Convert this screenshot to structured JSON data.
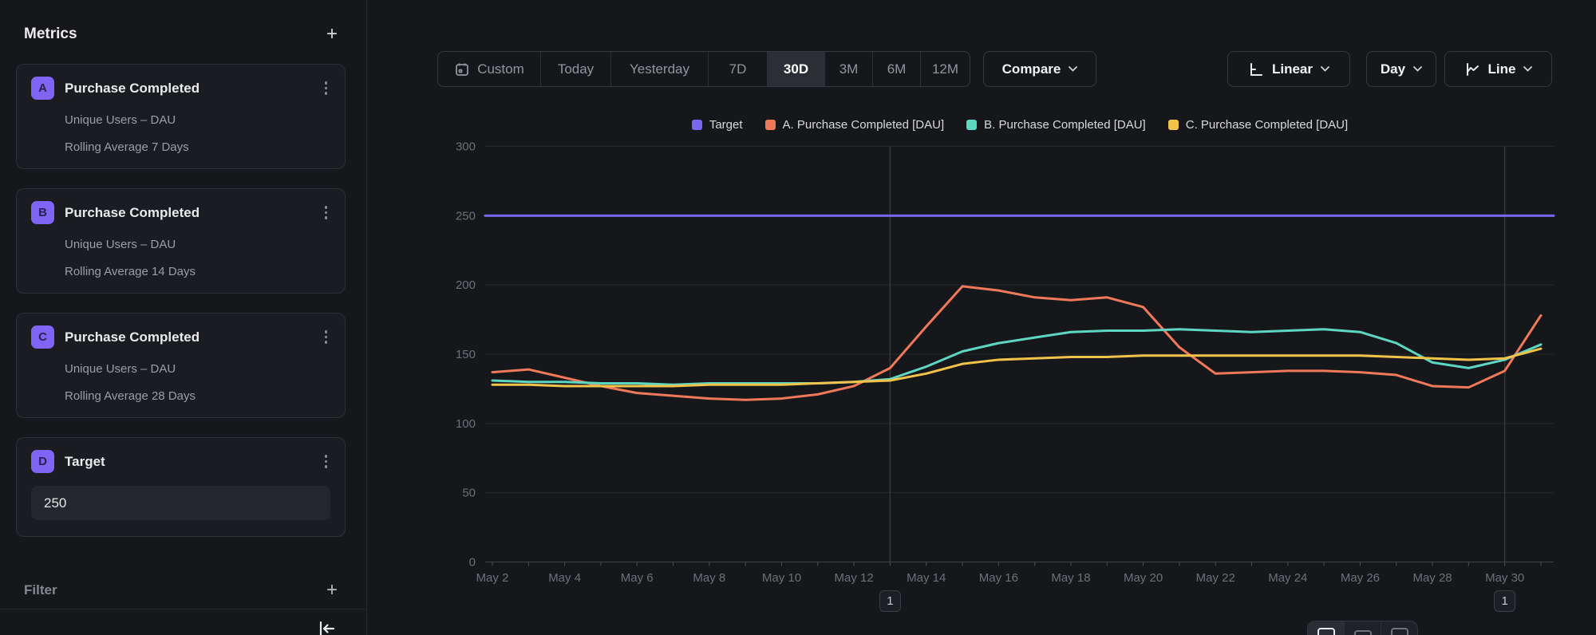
{
  "sidebar": {
    "title": "Metrics",
    "metrics": [
      {
        "badge": "A",
        "title": "Purchase Completed",
        "line1": "Unique Users – DAU",
        "line2": "Rolling Average 7 Days"
      },
      {
        "badge": "B",
        "title": "Purchase Completed",
        "line1": "Unique Users – DAU",
        "line2": "Rolling Average 14 Days"
      },
      {
        "badge": "C",
        "title": "Purchase Completed",
        "line1": "Unique Users – DAU",
        "line2": "Rolling Average 28 Days"
      }
    ],
    "target": {
      "badge": "D",
      "title": "Target",
      "value": "250"
    },
    "filter_label": "Filter"
  },
  "toolbar": {
    "ranges": [
      "Custom",
      "Today",
      "Yesterday",
      "7D",
      "30D",
      "3M",
      "6M",
      "12M"
    ],
    "active_range": "30D",
    "compare_label": "Compare",
    "scale_label": "Linear",
    "granularity_label": "Day",
    "chart_type_label": "Line"
  },
  "legend": [
    {
      "label": "Target",
      "color": "#7a67ee"
    },
    {
      "label": "A. Purchase Completed [DAU]",
      "color": "#f0795a"
    },
    {
      "label": "B. Purchase Completed [DAU]",
      "color": "#5dd6c2"
    },
    {
      "label": "C. Purchase Completed [DAU]",
      "color": "#f2c34a"
    }
  ],
  "chart_data": {
    "type": "line",
    "x": [
      "May 2",
      "May 3",
      "May 4",
      "May 5",
      "May 6",
      "May 7",
      "May 8",
      "May 9",
      "May 10",
      "May 11",
      "May 12",
      "May 13",
      "May 14",
      "May 15",
      "May 16",
      "May 17",
      "May 18",
      "May 19",
      "May 20",
      "May 21",
      "May 22",
      "May 23",
      "May 24",
      "May 25",
      "May 26",
      "May 27",
      "May 28",
      "May 29",
      "May 30",
      "May 31"
    ],
    "xtick_labels": [
      "May 2",
      "May 4",
      "May 6",
      "May 8",
      "May 10",
      "May 12",
      "May 14",
      "May 16",
      "May 18",
      "May 20",
      "May 22",
      "May 24",
      "May 26",
      "May 28",
      "May 30"
    ],
    "yticks": [
      0,
      50,
      100,
      150,
      200,
      250,
      300
    ],
    "ylim": [
      0,
      300
    ],
    "grid": true,
    "legend_position": "top",
    "series": [
      {
        "name": "Target",
        "color": "#7a67ee",
        "values": [
          250,
          250,
          250,
          250,
          250,
          250,
          250,
          250,
          250,
          250,
          250,
          250,
          250,
          250,
          250,
          250,
          250,
          250,
          250,
          250,
          250,
          250,
          250,
          250,
          250,
          250,
          250,
          250,
          250,
          250
        ]
      },
      {
        "name": "A. Purchase Completed [DAU]",
        "color": "#f0795a",
        "values": [
          137,
          139,
          133,
          127,
          122,
          120,
          118,
          117,
          118,
          121,
          127,
          140,
          170,
          199,
          196,
          191,
          189,
          191,
          184,
          155,
          136,
          137,
          138,
          138,
          137,
          135,
          127,
          126,
          138,
          178
        ]
      },
      {
        "name": "B. Purchase Completed [DAU]",
        "color": "#5dd6c2",
        "values": [
          131,
          130,
          130,
          129,
          129,
          128,
          129,
          129,
          129,
          129,
          130,
          132,
          141,
          152,
          158,
          162,
          166,
          167,
          167,
          168,
          167,
          166,
          167,
          168,
          166,
          158,
          144,
          140,
          146,
          157
        ]
      },
      {
        "name": "C. Purchase Completed [DAU]",
        "color": "#f2c34a",
        "values": [
          128,
          128,
          127,
          127,
          127,
          127,
          128,
          128,
          128,
          129,
          130,
          131,
          136,
          143,
          146,
          147,
          148,
          148,
          149,
          149,
          149,
          149,
          149,
          149,
          149,
          148,
          147,
          146,
          147,
          154
        ]
      }
    ]
  },
  "annotations": [
    {
      "day_index": 11,
      "x_label": "May 13",
      "badge": "1"
    },
    {
      "day_index": 28,
      "x_label": "May 30",
      "badge": "1"
    }
  ],
  "colors": {
    "background": "#16171b",
    "card_border": "#2e3138",
    "accent_purple": "#8064f4",
    "grid": "#26292e",
    "axis_text": "#6d7077"
  }
}
